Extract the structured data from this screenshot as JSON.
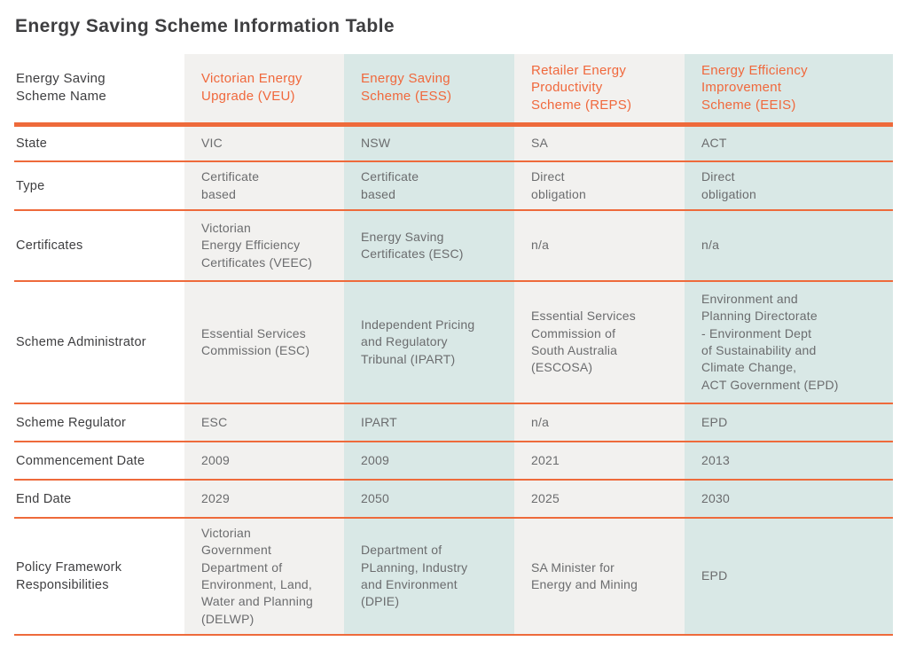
{
  "page": {
    "title": "Energy Saving Scheme Information Table"
  },
  "colors": {
    "divider_orange": "#EE6A3B",
    "header_text_orange": "#F0683C",
    "column_gray": "#F2F1EF",
    "column_teal": "#D9E8E6",
    "label_dark": "#3E3E40",
    "value_gray": "#6B6C6E"
  },
  "table": {
    "corner_header": "Energy Saving\nScheme Name",
    "columns": [
      {
        "label": "Victorian Energy\nUpgrade (VEU)"
      },
      {
        "label": "Energy Saving\nScheme (ESS)"
      },
      {
        "label": "Retailer Energy\nProductivity\nScheme (REPS)"
      },
      {
        "label": "Energy Efficiency\nImprovement\nScheme (EEIS)"
      }
    ],
    "rows": [
      {
        "label": "State",
        "values": [
          "VIC",
          "NSW",
          "SA",
          "ACT"
        ]
      },
      {
        "label": "Type",
        "values": [
          "Certificate\nbased",
          "Certificate\nbased",
          "Direct\nobligation",
          "Direct\nobligation"
        ]
      },
      {
        "label": "Certificates",
        "values": [
          "Victorian\nEnergy Efficiency\nCertificates (VEEC)",
          "Energy Saving\nCertificates (ESC)",
          "n/a",
          "n/a"
        ]
      },
      {
        "label": "Scheme Administrator",
        "values": [
          "Essential Services\nCommission (ESC)",
          "Independent Pricing\nand Regulatory\nTribunal (IPART)",
          "Essential Services\nCommission of\nSouth Australia\n(ESCOSA)",
          "Environment and\nPlanning Directorate\n- Environment Dept\nof Sustainability and\nClimate Change,\nACT Government (EPD)"
        ]
      },
      {
        "label": "Scheme Regulator",
        "values": [
          "ESC",
          "IPART",
          "n/a",
          "EPD"
        ]
      },
      {
        "label": "Commencement Date",
        "values": [
          "2009",
          "2009",
          "2021",
          "2013"
        ]
      },
      {
        "label": "End Date",
        "values": [
          "2029",
          "2050",
          "2025",
          "2030"
        ]
      },
      {
        "label": "Policy Framework\nResponsibilities",
        "values": [
          "Victorian\nGovernment\nDepartment of\nEnvironment, Land,\nWater and Planning\n(DELWP)",
          "Department of\nPLanning, Industry\nand Environment\n(DPIE)",
          "SA Minister for\nEnergy and Mining",
          "EPD"
        ]
      }
    ]
  }
}
